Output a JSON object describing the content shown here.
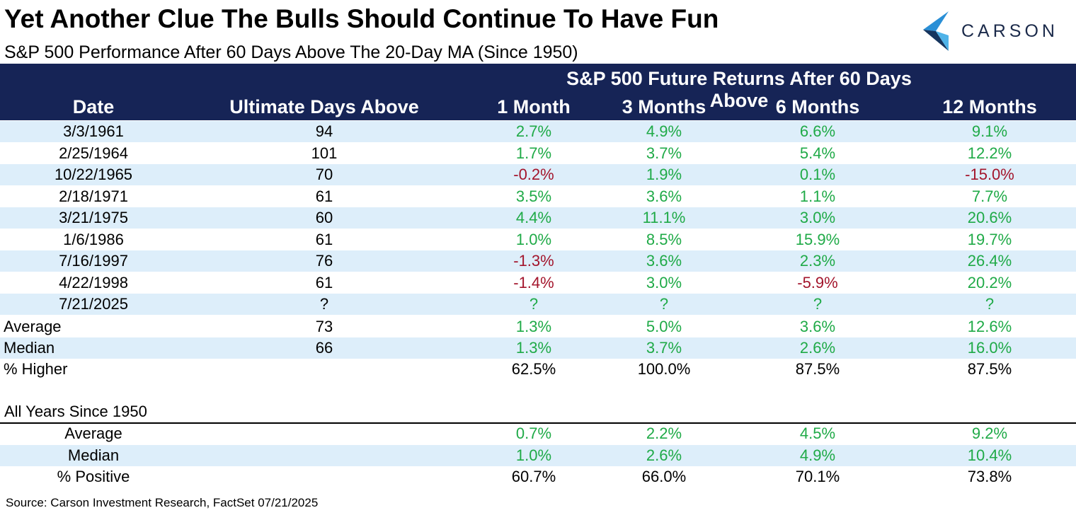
{
  "header": {
    "title": "Yet Another Clue The Bulls Should Continue To Have Fun",
    "subtitle": "S&P 500 Performance After 60 Days Above The 20-Day MA (Since 1950)",
    "logo": "CARSON"
  },
  "colors": {
    "positive": "#1faa47",
    "negative": "#a3152c",
    "stripe": "#ddeefa",
    "band": "#162456"
  },
  "table": {
    "group_header": "S&P 500 Future Returns After 60 Days Above",
    "columns": [
      "Date",
      "Ultimate Days Above",
      "1 Month",
      "3 Months",
      "6 Months",
      "12 Months"
    ],
    "rows": [
      [
        "3/3/1961",
        "94",
        "2.7%",
        "4.9%",
        "6.6%",
        "9.1%"
      ],
      [
        "2/25/1964",
        "101",
        "1.7%",
        "3.7%",
        "5.4%",
        "12.2%"
      ],
      [
        "10/22/1965",
        "70",
        "-0.2%",
        "1.9%",
        "0.1%",
        "-15.0%"
      ],
      [
        "2/18/1971",
        "61",
        "3.5%",
        "3.6%",
        "1.1%",
        "7.7%"
      ],
      [
        "3/21/1975",
        "60",
        "4.4%",
        "11.1%",
        "3.0%",
        "20.6%"
      ],
      [
        "1/6/1986",
        "61",
        "1.0%",
        "8.5%",
        "15.9%",
        "19.7%"
      ],
      [
        "7/16/1997",
        "76",
        "-1.3%",
        "3.6%",
        "2.3%",
        "26.4%"
      ],
      [
        "4/22/1998",
        "61",
        "-1.4%",
        "3.0%",
        "-5.9%",
        "20.2%"
      ],
      [
        "7/21/2025",
        "?",
        "?",
        "?",
        "?",
        "?"
      ]
    ],
    "summary_rows": [
      [
        "Average",
        "73",
        "1.3%",
        "5.0%",
        "3.6%",
        "12.6%"
      ],
      [
        "Median",
        "66",
        "1.3%",
        "3.7%",
        "2.6%",
        "16.0%"
      ]
    ],
    "percent_row": [
      "% Higher",
      "",
      "62.5%",
      "100.0%",
      "87.5%",
      "87.5%"
    ]
  },
  "all_years": {
    "title": "All Years Since 1950",
    "rows": [
      [
        "Average",
        "0.7%",
        "2.2%",
        "4.5%",
        "9.2%"
      ],
      [
        "Median",
        "1.0%",
        "2.6%",
        "4.9%",
        "10.4%"
      ]
    ],
    "percent_row": [
      "% Positive",
      "60.7%",
      "66.0%",
      "70.1%",
      "73.8%"
    ]
  },
  "source": "Source: Carson Investment Research, FactSet 07/21/2025"
}
